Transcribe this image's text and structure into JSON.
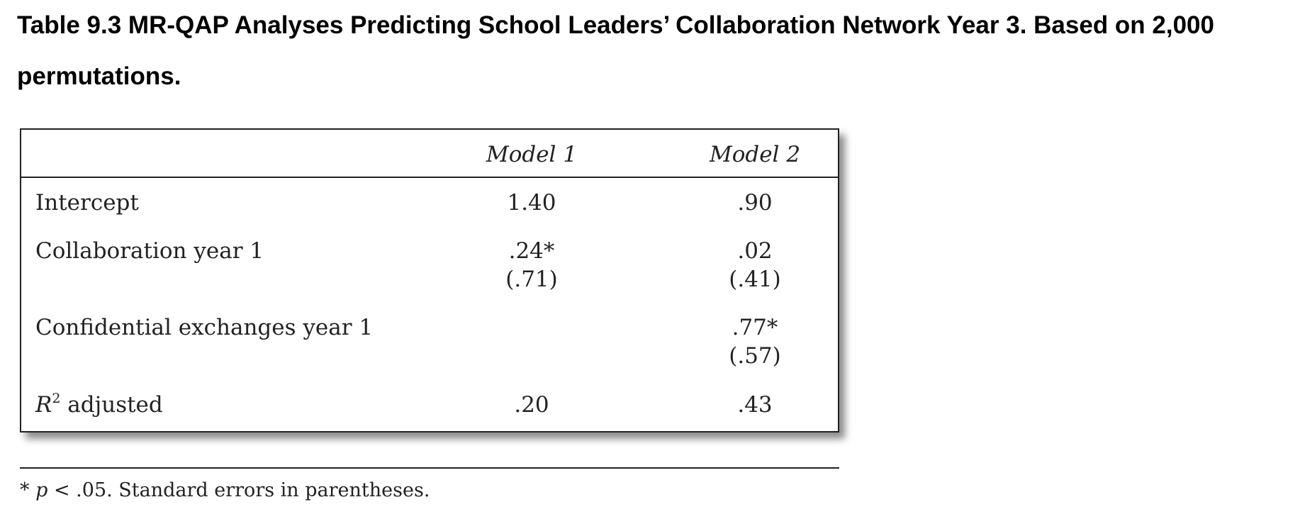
{
  "caption": {
    "line1": "Table 9.3 MR-QAP Analyses Predicting School Leaders’ Collaboration Network Year 3. Based on 2,000",
    "line2": "permutations."
  },
  "table": {
    "columns": [
      "Model 1",
      "Model 2"
    ],
    "rows": [
      {
        "label": "Intercept",
        "model1": "1.40",
        "model2": ".90",
        "model1_se": "",
        "model2_se": ""
      },
      {
        "label": "Collaboration year 1",
        "model1": ".24*",
        "model2": ".02",
        "model1_se": "(.71)",
        "model2_se": "(.41)"
      },
      {
        "label": "Confidential exchanges year 1",
        "model1": "",
        "model2": ".77*",
        "model1_se": "",
        "model2_se": "(.57)"
      }
    ],
    "r2_row": {
      "label_symbol": "R",
      "label_sup": "2",
      "label_rest": " adjusted",
      "model1": ".20",
      "model2": ".43"
    }
  },
  "footnote": {
    "star": "*",
    "p_symbol": "p",
    "text": " < .05. Standard errors in parentheses."
  }
}
